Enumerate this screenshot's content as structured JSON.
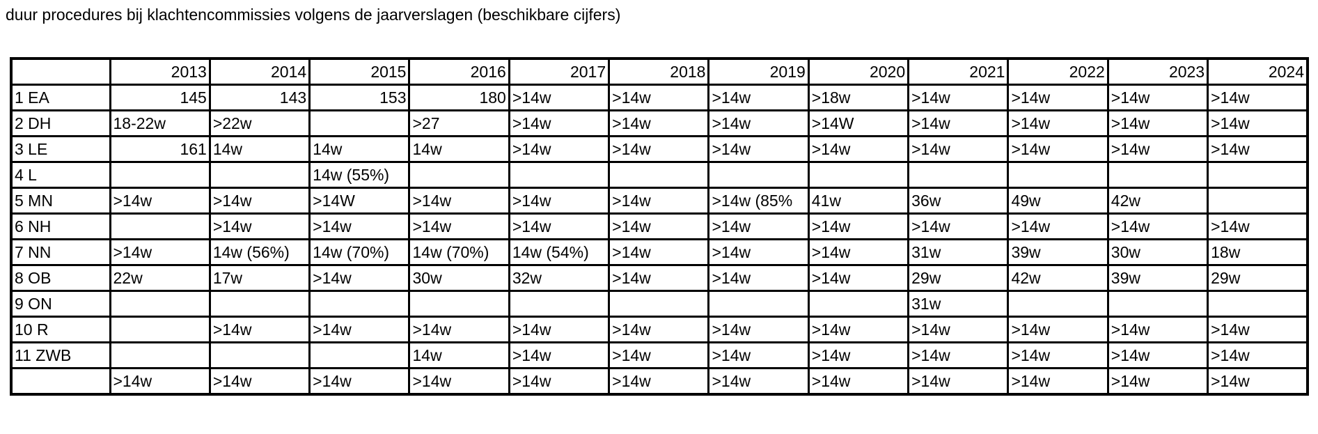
{
  "title": "duur procedures bij klachtencommissies volgens de jaarverslagen (beschikbare cijfers)",
  "table": {
    "headers": [
      "",
      "2013",
      "2014",
      "2015",
      "2016",
      "2017",
      "2018",
      "2019",
      "2020",
      "2021",
      "2022",
      "2023",
      "2024"
    ],
    "rows": [
      [
        "1 EA",
        "145",
        "143",
        "153",
        "180",
        ">14w",
        ">14w",
        ">14w",
        ">18w",
        ">14w",
        ">14w",
        ">14w",
        ">14w"
      ],
      [
        "2 DH",
        "18-22w",
        ">22w",
        "",
        ">27",
        ">14w",
        ">14w",
        ">14w",
        ">14W",
        ">14w",
        ">14w",
        ">14w",
        ">14w"
      ],
      [
        "3 LE",
        "161",
        "14w",
        "14w",
        "14w",
        ">14w",
        ">14w",
        ">14w",
        ">14w",
        ">14w",
        ">14w",
        ">14w",
        ">14w"
      ],
      [
        "4 L",
        "",
        "",
        "14w (55%)",
        "",
        "",
        "",
        "",
        "",
        "",
        "",
        "",
        ""
      ],
      [
        "5 MN",
        ">14w",
        ">14w",
        ">14W",
        ">14w",
        ">14w",
        ">14w",
        ">14w (85%",
        "41w",
        "36w",
        "49w",
        "42w",
        ""
      ],
      [
        "6 NH",
        "",
        ">14w",
        ">14w",
        ">14w",
        ">14w",
        ">14w",
        ">14w",
        ">14w",
        ">14w",
        ">14w",
        ">14w",
        ">14w"
      ],
      [
        "7 NN",
        ">14w",
        "14w (56%)",
        "14w (70%)",
        "14w (70%)",
        "14w (54%)",
        ">14w",
        ">14w",
        ">14w",
        "31w",
        "39w",
        "30w",
        "18w"
      ],
      [
        "8 OB",
        "22w",
        "17w",
        ">14w",
        "30w",
        "32w",
        ">14w",
        ">14w",
        ">14w",
        "29w",
        "42w",
        "39w",
        "29w"
      ],
      [
        "9 ON",
        "",
        "",
        "",
        "",
        "",
        "",
        "",
        "",
        "31w",
        "",
        "",
        ""
      ],
      [
        "10 R",
        "",
        ">14w",
        ">14w",
        ">14w",
        ">14w",
        ">14w",
        ">14w",
        ">14w",
        ">14w",
        ">14w",
        ">14w",
        ">14w"
      ],
      [
        "11 ZWB",
        "",
        "",
        "",
        "14w",
        ">14w",
        ">14w",
        ">14w",
        ">14w",
        ">14w",
        ">14w",
        ">14w",
        ">14w"
      ],
      [
        "",
        ">14w",
        ">14w",
        ">14w",
        ">14w",
        ">14w",
        ">14w",
        ">14w",
        ">14w",
        ">14w",
        ">14w",
        ">14w",
        ">14w"
      ]
    ]
  }
}
